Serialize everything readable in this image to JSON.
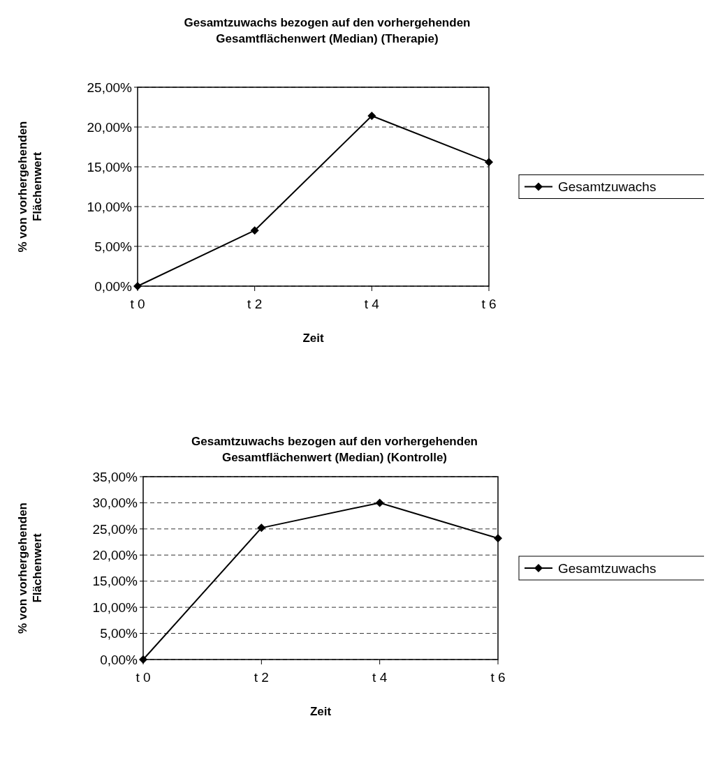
{
  "chart_data": [
    {
      "type": "line",
      "title": "Gesamtzuwachs bezogen auf den vorhergehenden Gesamtflächenwert (Median) (Therapie)",
      "xlabel": "Zeit",
      "ylabel": "% von vorhergehenden Flächenwert",
      "categories": [
        "t 0",
        "t 2",
        "t 4",
        "t 6"
      ],
      "series": [
        {
          "name": "Gesamtzuwachs",
          "color": "#000000",
          "values": [
            0,
            7.0,
            21.4,
            15.6
          ]
        }
      ],
      "ylim": [
        0,
        25
      ],
      "yticks": [
        {
          "value": 0,
          "label": "0,00%"
        },
        {
          "value": 5,
          "label": "5,00%"
        },
        {
          "value": 10,
          "label": "10,00%"
        },
        {
          "value": 15,
          "label": "15,00%"
        },
        {
          "value": 20,
          "label": "20,00%"
        },
        {
          "value": 25,
          "label": "25,00%"
        }
      ],
      "grid": "y",
      "legend": "right",
      "marker": "diamond",
      "line_style": "solid"
    },
    {
      "type": "line",
      "title": "Gesamtzuwachs bezogen auf den vorhergehenden Gesamtflächenwert (Median) (Kontrolle)",
      "xlabel": "Zeit",
      "ylabel": "% von vorhergehenden Flächenwert",
      "categories": [
        "t 0",
        "t 2",
        "t 4",
        "t 6"
      ],
      "series": [
        {
          "name": "Gesamtzuwachs",
          "color": "#000000",
          "values": [
            0,
            25.2,
            30.0,
            23.2
          ]
        }
      ],
      "ylim": [
        0,
        35
      ],
      "yticks": [
        {
          "value": 0,
          "label": "0,00%"
        },
        {
          "value": 5,
          "label": "5,00%"
        },
        {
          "value": 10,
          "label": "10,00%"
        },
        {
          "value": 15,
          "label": "15,00%"
        },
        {
          "value": 20,
          "label": "20,00%"
        },
        {
          "value": 25,
          "label": "25,00%"
        },
        {
          "value": 30,
          "label": "30,00%"
        },
        {
          "value": 35,
          "label": "35,00%"
        }
      ],
      "grid": "y",
      "legend": "right",
      "marker": "diamond",
      "line_style": "solid"
    }
  ]
}
